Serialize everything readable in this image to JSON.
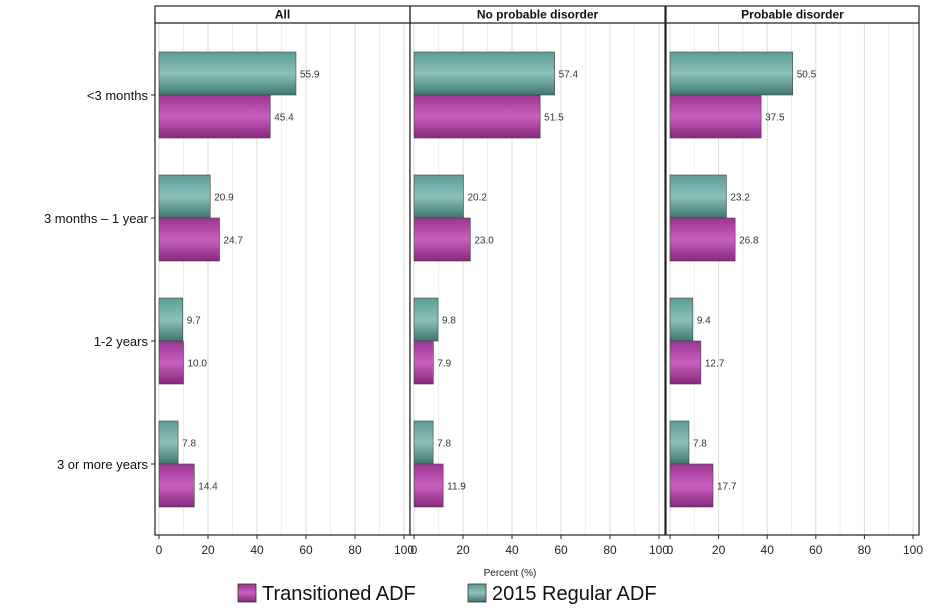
{
  "chart_data": {
    "type": "bar",
    "orientation": "horizontal",
    "xlabel": "Percent (%)",
    "xlim": [
      0,
      100
    ],
    "xticks": [
      0,
      20,
      40,
      60,
      80,
      100
    ],
    "categories": [
      "<3 months",
      "3 months – 1 year",
      "1-2 years",
      "3 or more years"
    ],
    "panels": [
      {
        "title": "All",
        "series": [
          {
            "name": "2015 Regular ADF",
            "values": [
              55.9,
              20.9,
              9.7,
              7.8
            ]
          },
          {
            "name": "Transitioned ADF",
            "values": [
              45.4,
              24.7,
              10.0,
              14.4
            ]
          }
        ]
      },
      {
        "title": "No probable disorder",
        "series": [
          {
            "name": "2015 Regular ADF",
            "values": [
              57.4,
              20.2,
              9.8,
              7.8
            ]
          },
          {
            "name": "Transitioned ADF",
            "values": [
              51.5,
              23.0,
              7.9,
              11.9
            ]
          }
        ]
      },
      {
        "title": "Probable disorder",
        "series": [
          {
            "name": "2015 Regular ADF",
            "values": [
              50.5,
              23.2,
              9.4,
              7.8
            ]
          },
          {
            "name": "Transitioned ADF",
            "values": [
              37.5,
              26.8,
              12.7,
              17.7
            ]
          }
        ]
      }
    ],
    "legend": {
      "position": "bottom",
      "entries": [
        {
          "name": "Transitioned ADF",
          "color": "#a63d9c"
        },
        {
          "name": "2015 Regular ADF",
          "color": "#4d8a84"
        }
      ]
    },
    "colors": {
      "Transitioned ADF": "#a63d9c",
      "2015 Regular ADF": "#4d8a84"
    },
    "grid": true
  }
}
